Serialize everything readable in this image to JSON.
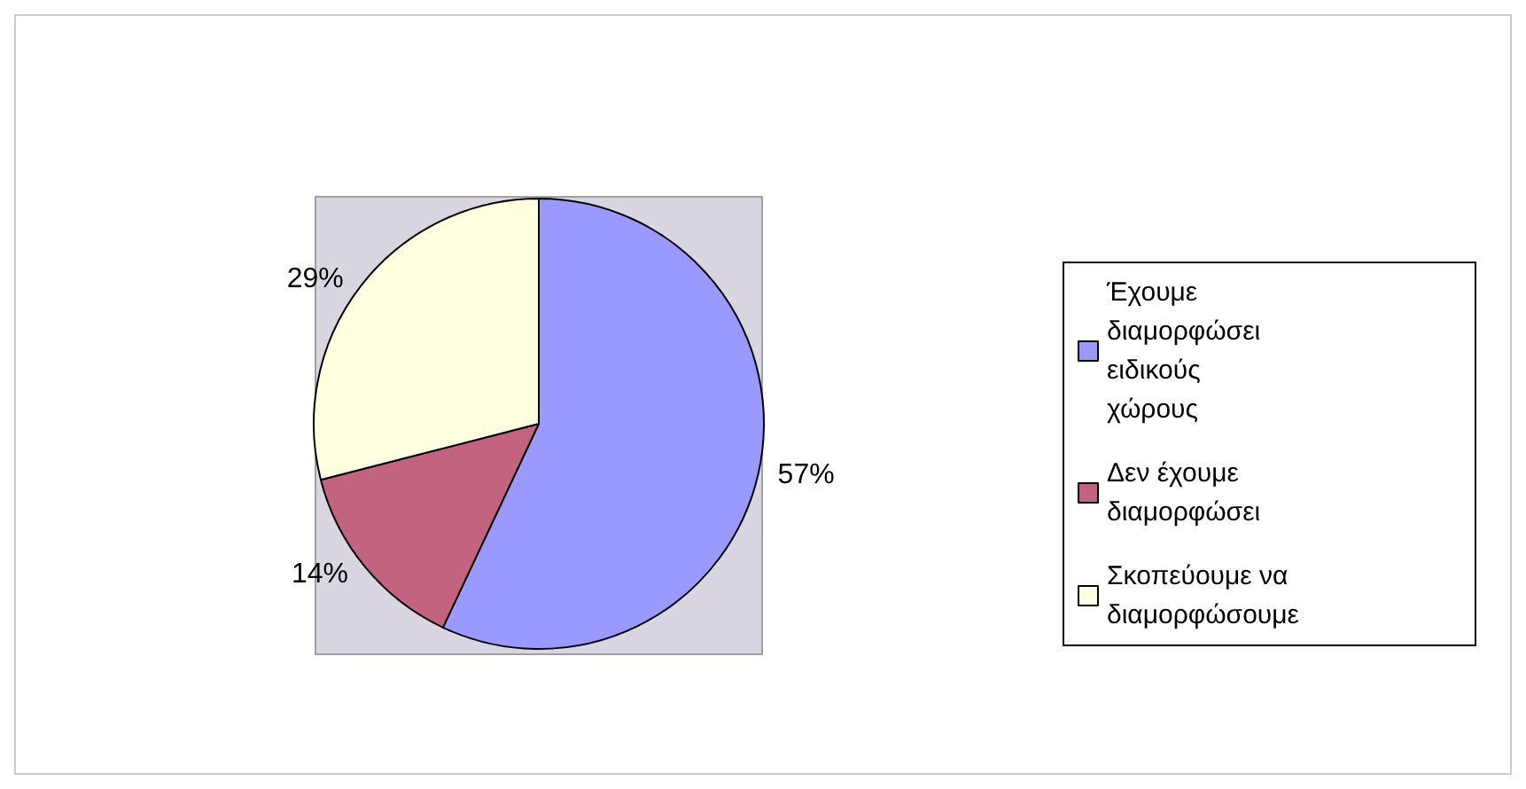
{
  "chart_data": {
    "type": "pie",
    "categories": [
      "Έχουμε διαμορφώσει ειδικούς χώρους",
      "Δεν έχουμε διαμορφώσει",
      "Σκοπεύουμε να διαμορφώσουμε"
    ],
    "values": [
      57,
      14,
      29
    ],
    "colors": [
      "#9999ff",
      "#c4637e",
      "#ffffe0"
    ],
    "value_labels": [
      "57%",
      "14%",
      "29%"
    ],
    "legend": "right"
  }
}
